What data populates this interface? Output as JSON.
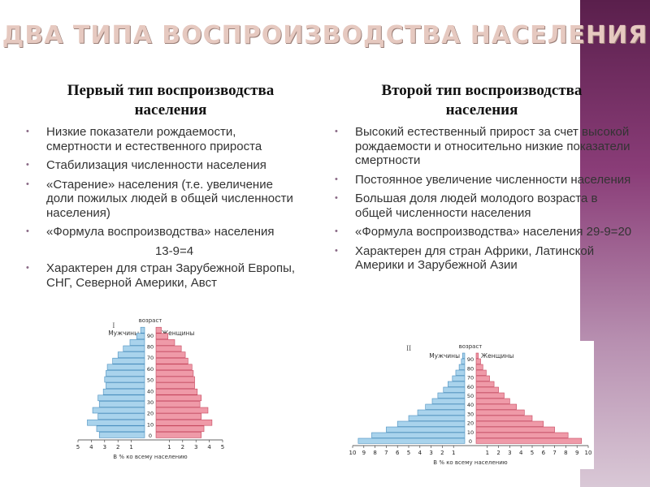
{
  "slide_title": "ДВА ТИПА ВОСПРОИЗВОДСТВА НАСЕЛЕНИЯ",
  "left": {
    "heading_line1": "Первый тип воспроизводства",
    "heading_line2": "населения",
    "bullets": [
      "Низкие показатели рождаемости, смертности и естественного прироста",
      "Стабилизация численности населения",
      "«Старение» населения (т.е. увеличение доли пожилых людей в общей численности населения)",
      "«Формула воспроизводства» населения",
      "Характерен для стран Зарубежной Европы, СНГ, Северной Америки, Авст"
    ],
    "formula": "13-9=4"
  },
  "right": {
    "heading_line1": "Второй тип воспроизводства",
    "heading_line2": "населения",
    "bullets": [
      "Высокий естественный прирост за счет высокой рождаемости и относительно низкие показатели смертности",
      "Постоянное увеличение численности населения",
      "Большая доля людей молодого возраста в общей численности населения",
      "«Формула воспроизводства» населения 29-9=20",
      "Характерен для стран Африки, Латинской Америки и Зарубежной Азии"
    ]
  },
  "pyramid1": {
    "roman": "I",
    "age_header": "возраст",
    "men_label": "Мужчины",
    "women_label": "Женщины",
    "ages": [
      "0",
      "10",
      "20",
      "30",
      "40",
      "50",
      "60",
      "70",
      "80",
      "90"
    ],
    "x_ticks": [
      "5",
      "4",
      "3",
      "2",
      "1",
      "1",
      "2",
      "3",
      "4",
      "5"
    ],
    "axis_caption": "В % ко всему населению",
    "men_values": [
      3.4,
      3.6,
      4.3,
      3.5,
      3.9,
      3.4,
      3.5,
      3.1,
      2.9,
      3.0,
      2.9,
      2.8,
      2.4,
      2.0,
      1.6,
      1.1,
      0.6,
      0.3
    ],
    "women_values": [
      3.4,
      3.6,
      4.2,
      3.4,
      3.9,
      3.3,
      3.4,
      3.1,
      2.9,
      2.9,
      2.8,
      2.7,
      2.4,
      2.2,
      1.9,
      1.4,
      0.9,
      0.4
    ],
    "colors": {
      "men": "#a9d3ec",
      "women": "#ef9aa8",
      "men_stroke": "#4a8fbf",
      "women_stroke": "#c6485f"
    }
  },
  "pyramid2": {
    "roman": "II",
    "age_header": "возраст",
    "men_label": "Мужчины",
    "women_label": "Женщины",
    "ages": [
      "0",
      "10",
      "20",
      "30",
      "40",
      "50",
      "60",
      "70",
      "80",
      "90"
    ],
    "x_ticks": [
      "10",
      "9",
      "8",
      "7",
      "6",
      "5",
      "4",
      "3",
      "2",
      "1",
      "1",
      "2",
      "3",
      "4",
      "5",
      "6",
      "7",
      "8",
      "9",
      "10"
    ],
    "axis_caption": "В % ко всему населению",
    "men_values": [
      9.5,
      8.3,
      7.0,
      6.0,
      5.0,
      4.2,
      3.5,
      2.9,
      2.4,
      1.9,
      1.5,
      1.1,
      0.8,
      0.5,
      0.3,
      0.2
    ],
    "women_values": [
      9.4,
      8.2,
      7.0,
      6.0,
      5.0,
      4.3,
      3.6,
      3.0,
      2.5,
      2.0,
      1.6,
      1.2,
      0.9,
      0.6,
      0.4,
      0.2
    ],
    "colors": {
      "men": "#a9d3ec",
      "women": "#ef9aa8",
      "men_stroke": "#4a8fbf",
      "women_stroke": "#c6485f"
    }
  }
}
